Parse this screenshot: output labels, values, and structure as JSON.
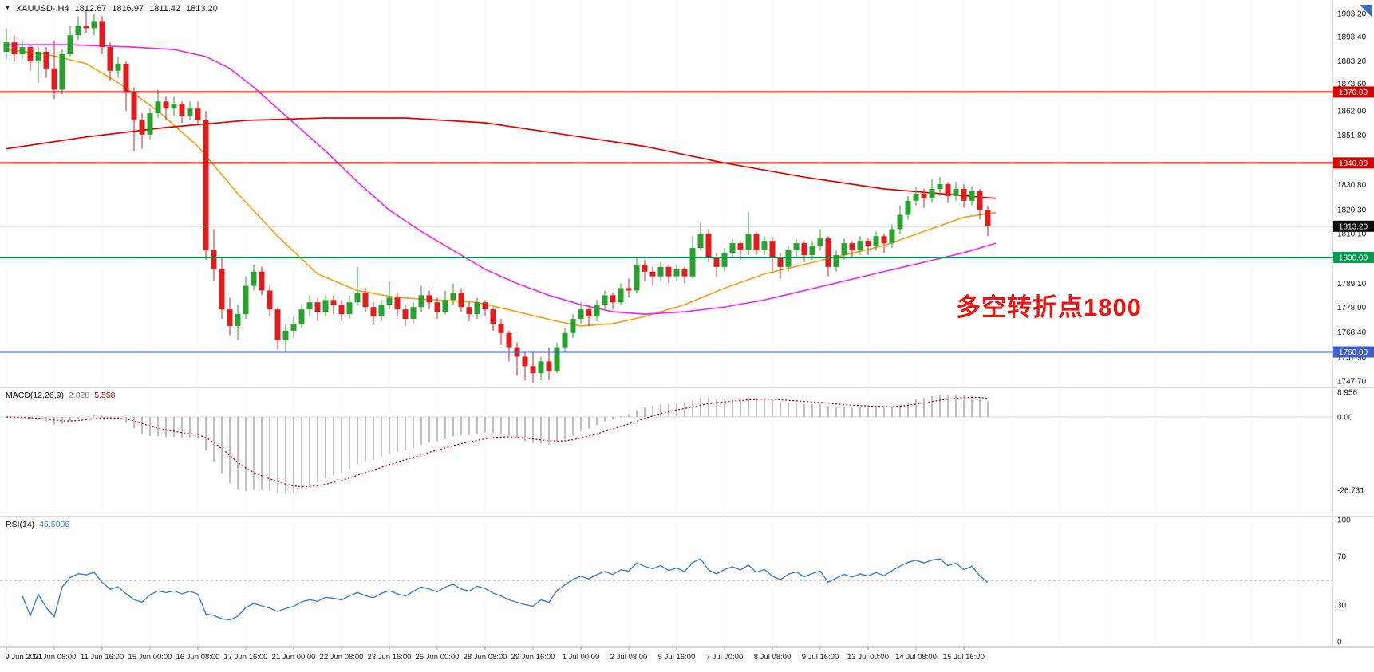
{
  "window": {
    "symbol_period": "XAUUSD-.H4",
    "open": "1812.67",
    "high": "1816.97",
    "low": "1811.42",
    "close": "1813.20"
  },
  "annotation": {
    "text": "多空转折点1800",
    "color": "#e81414"
  },
  "colors": {
    "up": "#27a22d",
    "down": "#e01d1d",
    "ma_orange": "#f7a21b",
    "ma_magenta": "#f32cf3",
    "ma_red": "#e60000",
    "macd_hist": "#b0b0b0",
    "macd_signal": "#cc0000",
    "rsi_line": "#3e7fd0",
    "current_price_line": "#9e9e9e"
  },
  "hlines": [
    {
      "price": 1870.0,
      "color": "#e00000",
      "width": 2
    },
    {
      "price": 1840.0,
      "color": "#e00000",
      "width": 2
    },
    {
      "price": 1800.0,
      "color": "#009a4e",
      "width": 2
    },
    {
      "price": 1760.0,
      "color": "#3f5fd0",
      "width": 2
    },
    {
      "price": 1813.2,
      "color": "#9e9e9e",
      "width": 1
    }
  ],
  "price_axis": {
    "labels": [
      {
        "text": "1903.20",
        "price": 1903.2
      },
      {
        "text": "1893.40",
        "price": 1893.4
      },
      {
        "text": "1883.20",
        "price": 1883.2
      },
      {
        "text": "1873.60",
        "price": 1873.6
      },
      {
        "text": "1862.00",
        "price": 1862.0
      },
      {
        "text": "1851.80",
        "price": 1851.8
      },
      {
        "text": "1830.80",
        "price": 1830.8
      },
      {
        "text": "1820.30",
        "price": 1820.3
      },
      {
        "text": "1810.10",
        "price": 1810.1
      },
      {
        "text": "1789.10",
        "price": 1789.1
      },
      {
        "text": "1778.90",
        "price": 1778.9
      },
      {
        "text": "1768.40",
        "price": 1768.4
      },
      {
        "text": "1757.90",
        "price": 1757.9
      },
      {
        "text": "1747.70",
        "price": 1747.7
      }
    ],
    "badges": [
      {
        "text": "1870.00",
        "price": 1870.0,
        "bg": "#d60000"
      },
      {
        "text": "1840.00",
        "price": 1840.0,
        "bg": "#d60000"
      },
      {
        "text": "1813.20",
        "price": 1813.2,
        "bg": "#0a0a0a"
      },
      {
        "text": "1800.00",
        "price": 1800.0,
        "bg": "#009a4e"
      },
      {
        "text": "1760.00",
        "price": 1760.0,
        "bg": "#3f5fd0"
      }
    ]
  },
  "indicators": {
    "macd": {
      "label": "MACD(12,26,9)",
      "value_main": "2.828",
      "value_signal": "5.558",
      "params": [
        12,
        26,
        9
      ],
      "scale": [
        {
          "text": "8.956",
          "value": 8.956
        },
        {
          "text": "0.00",
          "value": 0
        },
        {
          "text": "-26.731",
          "value": -26.731
        }
      ]
    },
    "rsi": {
      "label": "RSI(14)",
      "value": "45.5006",
      "period": 14,
      "dashed_level": 50,
      "scale": [
        {
          "text": "100",
          "value": 100
        },
        {
          "text": "70",
          "value": 70
        },
        {
          "text": "30",
          "value": 30
        },
        {
          "text": "0",
          "value": 0
        }
      ]
    }
  },
  "chart_data": {
    "type": "candlestick",
    "symbol": "XAUUSD-",
    "timeframe": "H4",
    "ylim": [
      1747.7,
      1903.2
    ],
    "x_labels": [
      "9 Jun 2021",
      "10 Jun 08:00",
      "11 Jun 16:00",
      "15 Jun 00:00",
      "16 Jun 08:00",
      "17 Jun 16:00",
      "21 Jun 00:00",
      "22 Jun 08:00",
      "23 Jun 16:00",
      "25 Jun 00:00",
      "28 Jun 08:00",
      "29 Jun 16:00",
      "1 Jul 00:00",
      "2 Jul 08:00",
      "5 Jul 16:00",
      "7 Jul 00:00",
      "8 Jul 08:00",
      "9 Jul 16:00",
      "13 Jul 00:00",
      "14 Jul 08:00",
      "15 Jul 16:00"
    ],
    "bars_per_label": 6,
    "candles": [
      [
        1887,
        1897,
        1884,
        1891
      ],
      [
        1891,
        1894,
        1883,
        1886
      ],
      [
        1886,
        1892,
        1884,
        1889
      ],
      [
        1889,
        1890,
        1879,
        1883
      ],
      [
        1883,
        1889,
        1874,
        1887
      ],
      [
        1887,
        1889,
        1876,
        1880
      ],
      [
        1880,
        1892,
        1867,
        1871
      ],
      [
        1871,
        1888,
        1869,
        1886
      ],
      [
        1886,
        1898,
        1885,
        1894
      ],
      [
        1894,
        1902,
        1892,
        1898
      ],
      [
        1898,
        1905,
        1895,
        1897
      ],
      [
        1897,
        1903,
        1894,
        1900
      ],
      [
        1900,
        1902,
        1886,
        1889
      ],
      [
        1889,
        1891,
        1875,
        1879
      ],
      [
        1879,
        1885,
        1876,
        1882
      ],
      [
        1882,
        1883,
        1862,
        1870
      ],
      [
        1870,
        1872,
        1845,
        1858
      ],
      [
        1858,
        1861,
        1846,
        1852
      ],
      [
        1852,
        1863,
        1850,
        1861
      ],
      [
        1861,
        1871,
        1859,
        1866
      ],
      [
        1866,
        1868,
        1858,
        1863
      ],
      [
        1863,
        1868,
        1860,
        1865
      ],
      [
        1865,
        1866,
        1857,
        1860
      ],
      [
        1860,
        1866,
        1858,
        1863
      ],
      [
        1863,
        1866,
        1856,
        1858
      ],
      [
        1858,
        1862,
        1799,
        1803
      ],
      [
        1803,
        1812,
        1790,
        1795
      ],
      [
        1795,
        1800,
        1774,
        1778
      ],
      [
        1778,
        1783,
        1767,
        1771
      ],
      [
        1771,
        1780,
        1765,
        1776
      ],
      [
        1776,
        1792,
        1774,
        1788
      ],
      [
        1788,
        1797,
        1786,
        1794
      ],
      [
        1794,
        1796,
        1784,
        1786
      ],
      [
        1786,
        1788,
        1775,
        1778
      ],
      [
        1778,
        1779,
        1761,
        1765
      ],
      [
        1765,
        1772,
        1760,
        1769
      ],
      [
        1769,
        1775,
        1766,
        1772
      ],
      [
        1772,
        1780,
        1770,
        1778
      ],
      [
        1778,
        1784,
        1775,
        1781
      ],
      [
        1781,
        1783,
        1773,
        1777
      ],
      [
        1777,
        1784,
        1775,
        1782
      ],
      [
        1782,
        1784,
        1776,
        1780
      ],
      [
        1780,
        1782,
        1773,
        1776
      ],
      [
        1776,
        1784,
        1774,
        1781
      ],
      [
        1781,
        1796,
        1780,
        1785
      ],
      [
        1785,
        1787,
        1777,
        1779
      ],
      [
        1779,
        1781,
        1772,
        1775
      ],
      [
        1775,
        1782,
        1773,
        1780
      ],
      [
        1780,
        1790,
        1778,
        1783
      ],
      [
        1783,
        1785,
        1775,
        1778
      ],
      [
        1778,
        1780,
        1771,
        1774
      ],
      [
        1774,
        1781,
        1772,
        1779
      ],
      [
        1779,
        1788,
        1777,
        1784
      ],
      [
        1784,
        1786,
        1778,
        1781
      ],
      [
        1781,
        1783,
        1774,
        1777
      ],
      [
        1777,
        1786,
        1776,
        1782
      ],
      [
        1782,
        1789,
        1780,
        1785
      ],
      [
        1785,
        1787,
        1777,
        1779
      ],
      [
        1779,
        1781,
        1773,
        1776
      ],
      [
        1776,
        1783,
        1774,
        1781
      ],
      [
        1781,
        1782,
        1775,
        1778
      ],
      [
        1778,
        1779,
        1769,
        1772
      ],
      [
        1772,
        1774,
        1763,
        1768
      ],
      [
        1768,
        1769,
        1756,
        1762
      ],
      [
        1762,
        1764,
        1750,
        1758
      ],
      [
        1758,
        1760,
        1748,
        1754
      ],
      [
        1754,
        1760,
        1747,
        1751
      ],
      [
        1751,
        1758,
        1748,
        1756
      ],
      [
        1756,
        1762,
        1748,
        1752
      ],
      [
        1752,
        1764,
        1751,
        1762
      ],
      [
        1762,
        1770,
        1760,
        1768
      ],
      [
        1768,
        1776,
        1766,
        1774
      ],
      [
        1774,
        1781,
        1772,
        1778
      ],
      [
        1778,
        1780,
        1771,
        1775
      ],
      [
        1775,
        1782,
        1773,
        1780
      ],
      [
        1780,
        1786,
        1778,
        1784
      ],
      [
        1784,
        1785,
        1778,
        1781
      ],
      [
        1781,
        1789,
        1780,
        1787
      ],
      [
        1787,
        1791,
        1783,
        1786
      ],
      [
        1786,
        1800,
        1785,
        1797
      ],
      [
        1797,
        1799,
        1790,
        1794
      ],
      [
        1794,
        1796,
        1788,
        1792
      ],
      [
        1792,
        1798,
        1790,
        1796
      ],
      [
        1796,
        1797,
        1789,
        1792
      ],
      [
        1792,
        1797,
        1790,
        1795
      ],
      [
        1795,
        1796,
        1789,
        1792
      ],
      [
        1792,
        1809,
        1791,
        1804
      ],
      [
        1804,
        1815,
        1803,
        1810
      ],
      [
        1810,
        1812,
        1798,
        1800
      ],
      [
        1800,
        1802,
        1792,
        1796
      ],
      [
        1796,
        1804,
        1794,
        1802
      ],
      [
        1802,
        1808,
        1800,
        1806
      ],
      [
        1806,
        1807,
        1799,
        1803
      ],
      [
        1803,
        1819,
        1801,
        1810
      ],
      [
        1810,
        1811,
        1801,
        1803
      ],
      [
        1803,
        1809,
        1801,
        1807
      ],
      [
        1807,
        1808,
        1794,
        1800
      ],
      [
        1800,
        1802,
        1791,
        1796
      ],
      [
        1796,
        1805,
        1794,
        1803
      ],
      [
        1803,
        1808,
        1800,
        1806
      ],
      [
        1806,
        1807,
        1798,
        1801
      ],
      [
        1801,
        1807,
        1799,
        1805
      ],
      [
        1805,
        1812,
        1803,
        1808
      ],
      [
        1808,
        1809,
        1792,
        1796
      ],
      [
        1796,
        1803,
        1794,
        1801
      ],
      [
        1801,
        1808,
        1799,
        1806
      ],
      [
        1806,
        1807,
        1800,
        1803
      ],
      [
        1803,
        1809,
        1801,
        1807
      ],
      [
        1807,
        1808,
        1801,
        1805
      ],
      [
        1805,
        1811,
        1803,
        1809
      ],
      [
        1809,
        1810,
        1802,
        1806
      ],
      [
        1806,
        1814,
        1804,
        1812
      ],
      [
        1812,
        1822,
        1810,
        1818
      ],
      [
        1818,
        1826,
        1816,
        1824
      ],
      [
        1824,
        1830,
        1822,
        1827
      ],
      [
        1827,
        1829,
        1821,
        1825
      ],
      [
        1825,
        1833,
        1823,
        1829
      ],
      [
        1829,
        1834,
        1826,
        1831
      ],
      [
        1831,
        1832,
        1823,
        1826
      ],
      [
        1826,
        1832,
        1824,
        1829
      ],
      [
        1829,
        1831,
        1821,
        1824
      ],
      [
        1824,
        1830,
        1822,
        1828
      ],
      [
        1828,
        1829,
        1816,
        1820
      ],
      [
        1820,
        1822,
        1809,
        1813.2
      ]
    ],
    "overlays": [
      {
        "name": "ma-line-orange",
        "color": "#f7a21b",
        "points": [
          [
            0,
            1888
          ],
          [
            5,
            1886
          ],
          [
            10,
            1882
          ],
          [
            14,
            1874
          ],
          [
            19,
            1862
          ],
          [
            24,
            1847
          ],
          [
            29,
            1827
          ],
          [
            34,
            1809
          ],
          [
            39,
            1793
          ],
          [
            44,
            1786
          ],
          [
            49,
            1783
          ],
          [
            54,
            1782
          ],
          [
            59,
            1781
          ],
          [
            64,
            1777
          ],
          [
            69,
            1773
          ],
          [
            72,
            1771
          ],
          [
            76,
            1772
          ],
          [
            80,
            1775
          ],
          [
            85,
            1780
          ],
          [
            90,
            1787
          ],
          [
            95,
            1793
          ],
          [
            100,
            1797
          ],
          [
            105,
            1801
          ],
          [
            110,
            1805
          ],
          [
            115,
            1811
          ],
          [
            120,
            1817
          ],
          [
            124,
            1819
          ]
        ]
      },
      {
        "name": "ma-line-magenta",
        "color": "#f32cf3",
        "points": [
          [
            0,
            1890
          ],
          [
            8,
            1890
          ],
          [
            16,
            1889
          ],
          [
            21,
            1888
          ],
          [
            25,
            1885
          ],
          [
            28,
            1880
          ],
          [
            31,
            1872
          ],
          [
            34,
            1863
          ],
          [
            37,
            1854
          ],
          [
            40,
            1845
          ],
          [
            44,
            1832
          ],
          [
            48,
            1820
          ],
          [
            52,
            1811
          ],
          [
            56,
            1803
          ],
          [
            60,
            1795
          ],
          [
            64,
            1789
          ],
          [
            68,
            1784
          ],
          [
            72,
            1780
          ],
          [
            76,
            1777
          ],
          [
            80,
            1776
          ],
          [
            85,
            1777
          ],
          [
            90,
            1779
          ],
          [
            95,
            1782
          ],
          [
            100,
            1786
          ],
          [
            105,
            1790
          ],
          [
            110,
            1794
          ],
          [
            115,
            1798
          ],
          [
            120,
            1802
          ],
          [
            124,
            1806
          ]
        ]
      },
      {
        "name": "ma-line-red",
        "color": "#e60000",
        "points": [
          [
            0,
            1846
          ],
          [
            10,
            1851
          ],
          [
            20,
            1855
          ],
          [
            30,
            1858
          ],
          [
            40,
            1859
          ],
          [
            50,
            1859
          ],
          [
            60,
            1857
          ],
          [
            70,
            1852
          ],
          [
            80,
            1847
          ],
          [
            90,
            1840
          ],
          [
            100,
            1834
          ],
          [
            110,
            1829
          ],
          [
            117,
            1827
          ],
          [
            124,
            1825
          ]
        ]
      }
    ]
  }
}
